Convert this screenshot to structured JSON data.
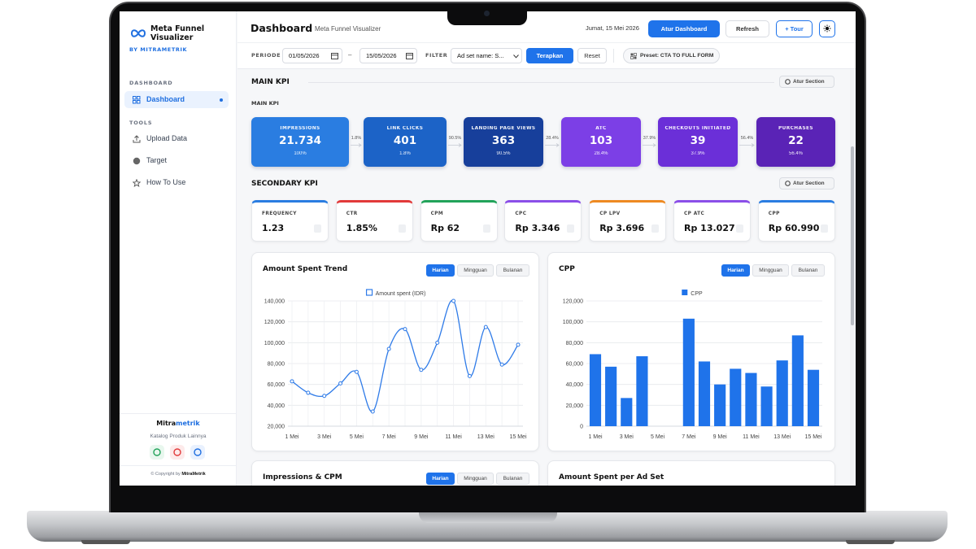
{
  "sidebar": {
    "brand": "Meta Funnel Visualizer",
    "byline": "BY MITRAMETRIK",
    "sections": [
      {
        "title": "DASHBOARD",
        "items": [
          "Dashboard"
        ]
      },
      {
        "title": "TOOLS",
        "items": [
          "Upload Data",
          "Target",
          "How To Use"
        ]
      }
    ],
    "footer": {
      "brand_a": "Mitra",
      "brand_b": "metrik",
      "catalog": "Katalog Produk Lainnya",
      "copyright": "© Copyright by",
      "copyright_brand": "MitraMetrik"
    }
  },
  "header": {
    "title": "Dashboard",
    "subtitle": "Meta Funnel Visualizer",
    "date": "Jumat, 15 Mei 2026",
    "buttons": [
      "Atur Dashboard",
      "Refresh",
      "+ Tour"
    ]
  },
  "filters": {
    "period_label": "PERIODE",
    "start": "01/05/2026",
    "separator": "–",
    "end": "15/05/2026",
    "filter_label": "FILTER",
    "select": "Ad set name: S...",
    "apply": "Terapkan",
    "reset": "Reset",
    "preset": "Preset: CTA TO FULL FORM"
  },
  "main_kpi": {
    "title": "MAIN KPI",
    "section_button": "Atur Section",
    "subtitle": "MAIN KPI",
    "cards": [
      {
        "label": "IMPRESSIONS",
        "value": "21.734",
        "pct": "100%"
      },
      {
        "label": "LINK CLICKS",
        "value": "401",
        "pct": "1.8%"
      },
      {
        "label": "LANDING PAGE VIEWS",
        "value": "363",
        "pct": "90.5%"
      },
      {
        "label": "ATC",
        "value": "103",
        "pct": "28.4%"
      },
      {
        "label": "CHECKOUTS INITIATED",
        "value": "39",
        "pct": "37.9%"
      },
      {
        "label": "PURCHASES",
        "value": "22",
        "pct": "56.4%"
      }
    ],
    "conversions": [
      "1.8%",
      "90.5%",
      "28.4%",
      "37.9%",
      "56.4%"
    ]
  },
  "secondary_kpi": {
    "title": "SECONDARY KPI",
    "section_button": "Atur Section",
    "cards": [
      {
        "label": "FREQUENCY",
        "value": "1.23"
      },
      {
        "label": "CTR",
        "value": "1.85%"
      },
      {
        "label": "CPM",
        "value": "Rp 62"
      },
      {
        "label": "CPC",
        "value": "Rp 3.346"
      },
      {
        "label": "CP LPV",
        "value": "Rp 3.696"
      },
      {
        "label": "CP ATC",
        "value": "Rp 13.027"
      },
      {
        "label": "CPP",
        "value": "Rp 60.990"
      }
    ]
  },
  "charts": [
    {
      "type": "line",
      "title": "Amount Spent Trend",
      "tabs": [
        "Harian",
        "Mingguan",
        "Bulanan"
      ],
      "categories": [
        "1 Mei",
        null,
        "3 Mei",
        null,
        "5 Mei",
        null,
        "7 Mei",
        null,
        "9 Mei",
        null,
        "11 Mei",
        null,
        "13 Mei",
        null,
        "15 Mei"
      ],
      "series": [
        {
          "name": "Amount spent (IDR)",
          "color": "#2f7be8",
          "values": [
            63000,
            52000,
            49000,
            61000,
            72000,
            34000,
            94000,
            113000,
            74000,
            100000,
            140000,
            68000,
            115000,
            79000,
            98000
          ]
        }
      ],
      "ylim": [
        20000,
        140000
      ],
      "yticks": [
        {
          "value": 20000,
          "label": "20,000"
        },
        {
          "value": 40000,
          "label": "40,000"
        },
        {
          "value": 60000,
          "label": "60,000"
        },
        {
          "value": 80000,
          "label": "80,000"
        },
        {
          "value": 100000,
          "label": "100,000"
        },
        {
          "value": 120000,
          "label": "120,000"
        },
        {
          "value": 140000,
          "label": "140,000"
        }
      ],
      "grid": true
    },
    {
      "type": "bar",
      "title": "CPP",
      "tabs": [
        "Harian",
        "Mingguan",
        "Bulanan"
      ],
      "categories": [
        "1 Mei",
        null,
        "3 Mei",
        null,
        "5 Mei",
        null,
        "7 Mei",
        null,
        "9 Mei",
        null,
        "11 Mei",
        null,
        "13 Mei",
        null,
        "15 Mei"
      ],
      "series": [
        {
          "name": "CPP",
          "color": "#1f73ea",
          "values": [
            69000,
            57000,
            27000,
            67000,
            null,
            null,
            103000,
            62000,
            40000,
            55000,
            51000,
            38000,
            63000,
            87000,
            54000
          ]
        }
      ],
      "ylim": [
        0,
        120000
      ],
      "yticks": [
        0,
        {
          "value": 20000,
          "label": "20,000"
        },
        {
          "value": 40000,
          "label": "40,000"
        },
        {
          "value": 60000,
          "label": "60,000"
        },
        {
          "value": 80000,
          "label": "80,000"
        },
        {
          "value": 100000,
          "label": "100,000"
        },
        {
          "value": 120000,
          "label": "120,000"
        }
      ],
      "grid": true
    }
  ],
  "lower_panels": [
    {
      "title": "Impressions & CPM",
      "tabs": [
        "Harian",
        "Mingguan",
        "Bulanan"
      ]
    },
    {
      "title": "Amount Spent per Ad Set"
    }
  ]
}
